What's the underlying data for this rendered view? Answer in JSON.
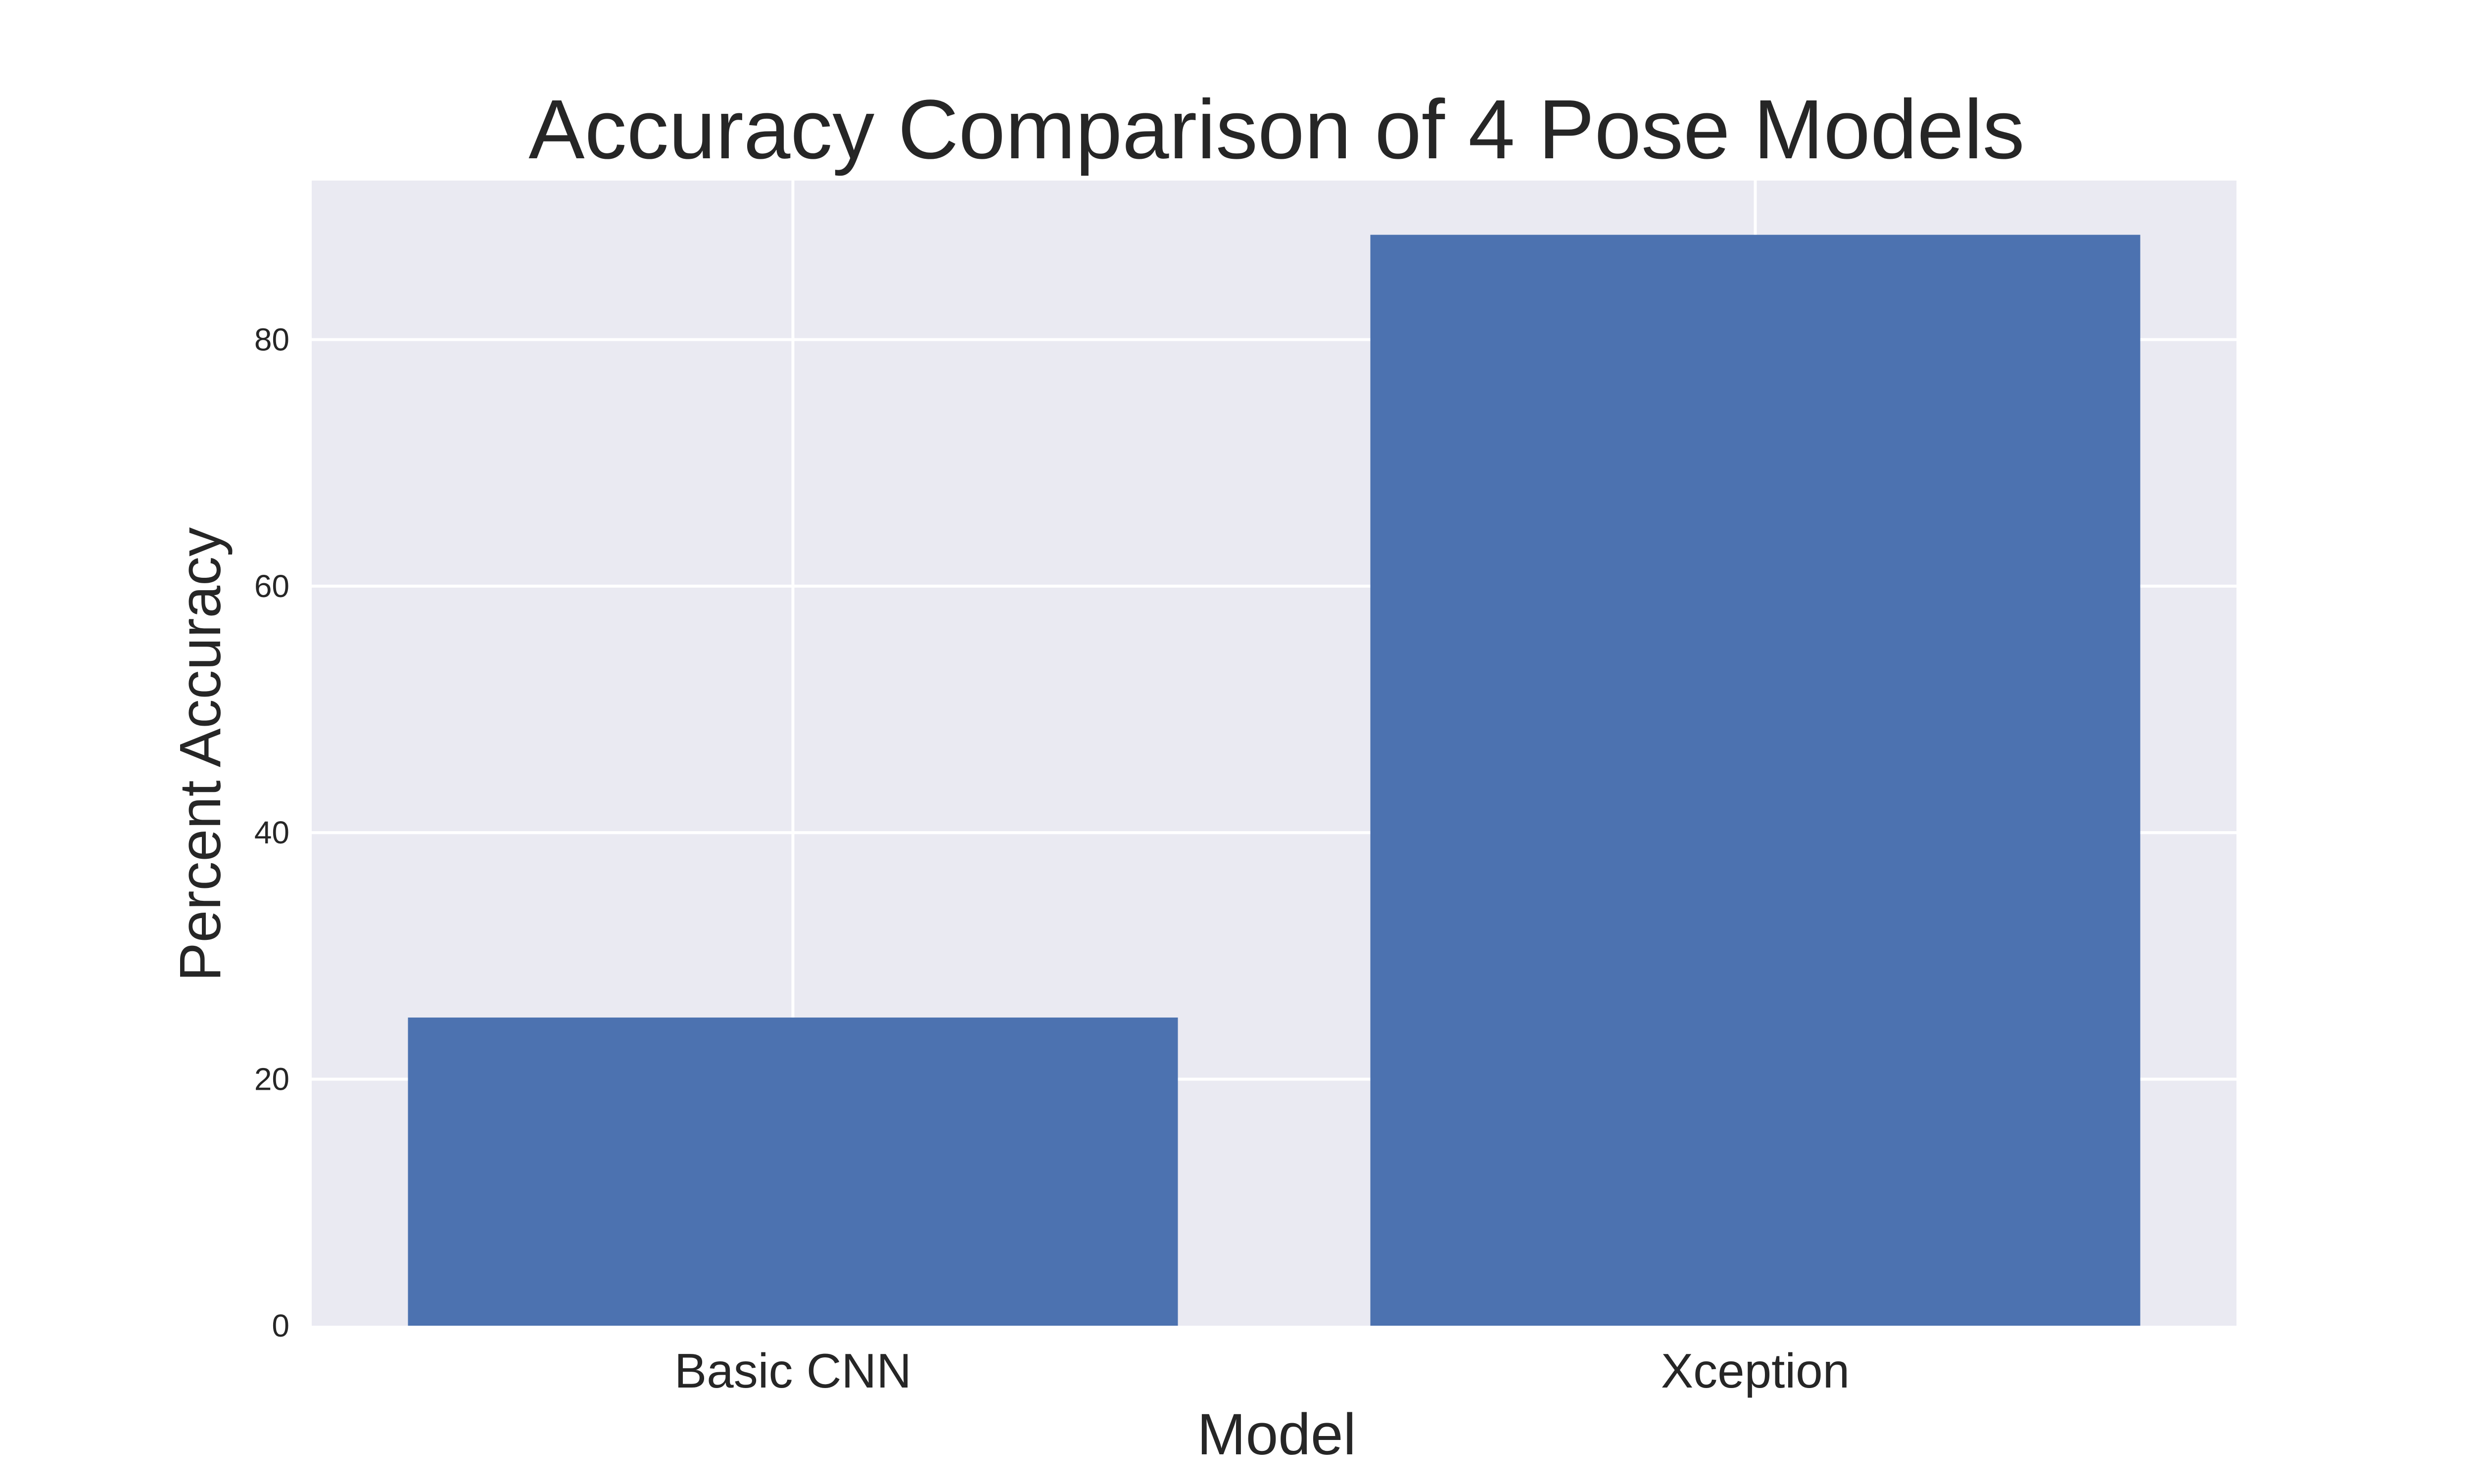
{
  "chart_data": {
    "type": "bar",
    "title": "Accuracy Comparison of 4 Pose Models",
    "xlabel": "Model",
    "ylabel": "Percent Accuracy",
    "categories": [
      "Basic CNN",
      "Xception"
    ],
    "values": [
      25.0,
      88.5
    ],
    "ylim": [
      0,
      92.9
    ],
    "yticks": [
      0,
      20,
      40,
      60,
      80
    ],
    "grid": true,
    "colors": {
      "bar": "#4c72b0",
      "background": "#eaeaf2",
      "grid": "#ffffff",
      "text": "#262626"
    }
  }
}
